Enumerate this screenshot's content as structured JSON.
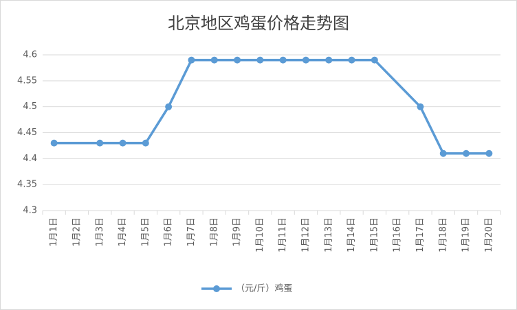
{
  "chart_data": {
    "type": "line",
    "title": "北京地区鸡蛋价格走势图",
    "categories": [
      "1月1日",
      "1月2日",
      "1月3日",
      "1月4日",
      "1月5日",
      "1月6日",
      "1月7日",
      "1月8日",
      "1月9日",
      "1月10日",
      "1月11日",
      "1月12日",
      "1月13日",
      "1月14日",
      "1月15日",
      "1月16日",
      "1月17日",
      "1月18日",
      "1月19日",
      "1月20日"
    ],
    "series": [
      {
        "name": "（元/斤）鸡蛋",
        "color": "#5b9bd5",
        "values": [
          4.43,
          null,
          4.43,
          4.43,
          4.43,
          4.5,
          4.59,
          4.59,
          4.59,
          4.59,
          4.59,
          4.59,
          4.59,
          4.59,
          4.59,
          null,
          4.5,
          4.41,
          4.41,
          4.41
        ]
      }
    ],
    "ylim": [
      4.3,
      4.6
    ],
    "yticks": [
      4.3,
      4.35,
      4.4,
      4.45,
      4.5,
      4.55,
      4.6
    ],
    "grid": true,
    "span_gaps": true,
    "legend": "bottom"
  }
}
